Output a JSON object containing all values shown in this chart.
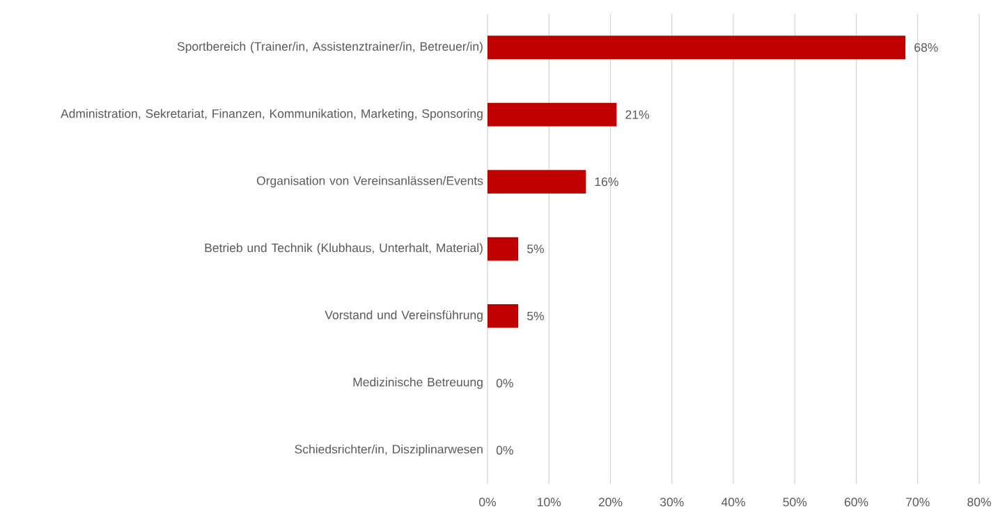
{
  "chart_data": {
    "type": "bar",
    "orientation": "horizontal",
    "categories": [
      "Sportbereich (Trainer/in, Assistenztrainer/in, Betreuer/in)",
      "Administration, Sekretariat, Finanzen, Kommunikation, Marketing, Sponsoring",
      "Organisation von Vereinsanlässen/Events",
      "Betrieb und Technik (Klubhaus, Unterhalt, Material)",
      "Vorstand und Vereinsführung",
      "Medizinische Betreuung",
      "Schiedsrichter/in, Disziplinarwesen"
    ],
    "values": [
      68,
      21,
      16,
      5,
      5,
      0,
      0
    ],
    "value_labels": [
      "68%",
      "21%",
      "16%",
      "5%",
      "5%",
      "0%",
      "0%"
    ],
    "color": "#c00000",
    "xlim": [
      0,
      80
    ],
    "xticks": [
      {
        "value": 0,
        "label": "0%"
      },
      {
        "value": 10,
        "label": "10%"
      },
      {
        "value": 20,
        "label": "20%"
      },
      {
        "value": 30,
        "label": "30%"
      },
      {
        "value": 40,
        "label": "40%"
      },
      {
        "value": 50,
        "label": "50%"
      },
      {
        "value": 60,
        "label": "60%"
      },
      {
        "value": 70,
        "label": "70%"
      },
      {
        "value": 80,
        "label": "80%"
      }
    ],
    "grid": "x"
  }
}
